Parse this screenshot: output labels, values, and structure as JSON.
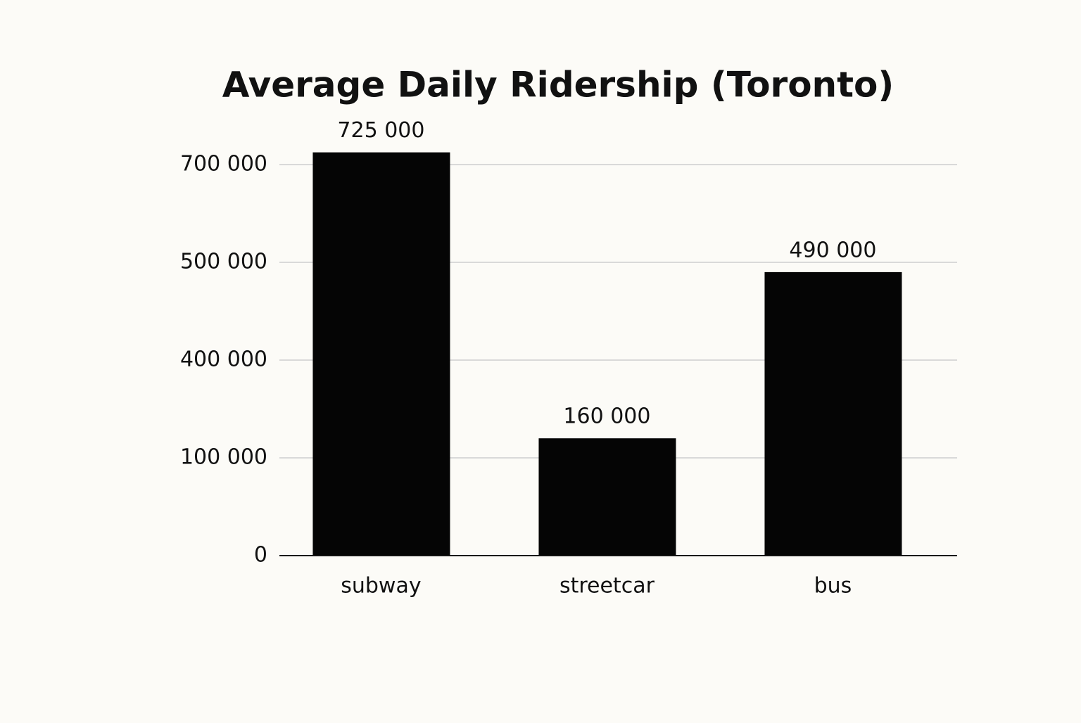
{
  "chart_data": {
    "type": "bar",
    "title": "Average Daily Ridership (Toronto)",
    "categories": [
      "subway",
      "streetcar",
      "bus"
    ],
    "values": [
      725000,
      160000,
      490000
    ],
    "value_labels": [
      "725 000",
      "160 000",
      "490 000"
    ],
    "color": "#050505",
    "ylim": [
      0,
      700000
    ],
    "yticks": [
      0,
      {
        "value": 100000,
        "label": "100 000"
      },
      {
        "value": 400000,
        "label": "400 000"
      },
      {
        "value": 500000,
        "label": "500 000"
      },
      {
        "value": 700000,
        "label": "700 000"
      }
    ],
    "grid": true
  }
}
